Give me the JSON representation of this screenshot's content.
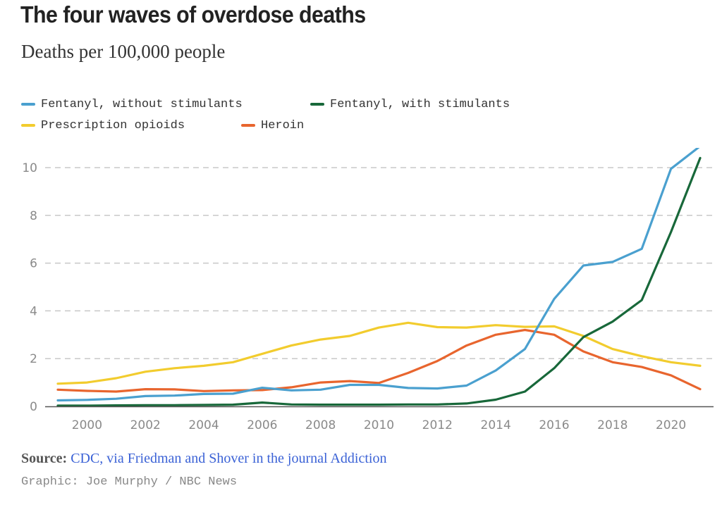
{
  "header": {
    "title": "The four waves of overdose deaths",
    "subtitle": "Deaths per 100,000 people"
  },
  "legend": {
    "items": [
      {
        "label": "Fentanyl, without stimulants",
        "color": "#4aa0cf"
      },
      {
        "label": "Fentanyl, with stimulants",
        "color": "#18683a"
      },
      {
        "label": "Prescription opioids",
        "color": "#f2cc2e"
      },
      {
        "label": "Heroin",
        "color": "#e8652e"
      }
    ]
  },
  "footer": {
    "source_label": "Source:",
    "source_text": "CDC, via Friedman and Shover in the journal Addiction",
    "credit": "Graphic: Joe Murphy / NBC News"
  },
  "chart_data": {
    "type": "line",
    "title": "The four waves of overdose deaths",
    "subtitle": "Deaths per 100,000 people",
    "xlabel": "",
    "ylabel": "Deaths per 100,000 people",
    "x": [
      1999,
      2000,
      2001,
      2002,
      2003,
      2004,
      2005,
      2006,
      2007,
      2008,
      2009,
      2010,
      2011,
      2012,
      2013,
      2014,
      2015,
      2016,
      2017,
      2018,
      2019,
      2020,
      2021
    ],
    "xlim": [
      1999,
      2021
    ],
    "ylim": [
      0,
      10.9
    ],
    "x_ticks": [
      "2000",
      "2002",
      "2004",
      "2006",
      "2008",
      "2010",
      "2012",
      "2014",
      "2016",
      "2018",
      "2020"
    ],
    "y_ticks": [
      "0",
      "2",
      "4",
      "6",
      "8",
      "10"
    ],
    "grid": "horizontal dashed",
    "legend_position": "top-left",
    "series": [
      {
        "name": "Fentanyl, without stimulants",
        "color": "#4aa0cf",
        "values": [
          0.25,
          0.27,
          0.32,
          0.43,
          0.45,
          0.52,
          0.53,
          0.78,
          0.67,
          0.7,
          0.9,
          0.9,
          0.77,
          0.75,
          0.87,
          1.5,
          2.4,
          4.5,
          5.9,
          6.05,
          6.6,
          9.95,
          10.9
        ]
      },
      {
        "name": "Fentanyl, with stimulants",
        "color": "#18683a",
        "values": [
          0.03,
          0.03,
          0.04,
          0.05,
          0.05,
          0.06,
          0.07,
          0.16,
          0.08,
          0.07,
          0.07,
          0.07,
          0.08,
          0.08,
          0.12,
          0.28,
          0.62,
          1.6,
          2.9,
          3.55,
          4.45,
          7.3,
          10.4
        ]
      },
      {
        "name": "Prescription opioids",
        "color": "#f2cc2e",
        "values": [
          0.95,
          1.0,
          1.18,
          1.45,
          1.6,
          1.7,
          1.85,
          2.2,
          2.55,
          2.8,
          2.95,
          3.3,
          3.5,
          3.32,
          3.3,
          3.4,
          3.33,
          3.35,
          2.95,
          2.4,
          2.1,
          1.85,
          1.7
        ]
      },
      {
        "name": "Heroin",
        "color": "#e8652e",
        "values": [
          0.7,
          0.65,
          0.62,
          0.72,
          0.71,
          0.64,
          0.67,
          0.68,
          0.8,
          1.0,
          1.06,
          0.98,
          1.4,
          1.9,
          2.55,
          3.0,
          3.2,
          3.0,
          2.3,
          1.85,
          1.65,
          1.3,
          0.72
        ]
      }
    ]
  }
}
